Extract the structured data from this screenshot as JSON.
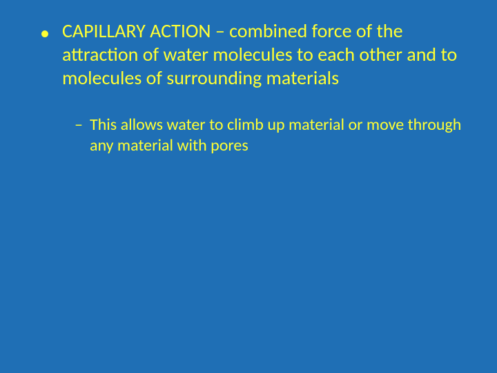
{
  "slide": {
    "background_color": "#1f6fb5",
    "text_color": "#ffff33",
    "font_family": "Calibri",
    "bullets": {
      "level1": {
        "marker": "•",
        "text": "CAPILLARY ACTION – combined force of the attraction of water molecules to each other and to molecules of surrounding materials",
        "fontsize": 28
      },
      "level2": {
        "marker": "–",
        "text": "This allows water to climb up material or move through any material with pores",
        "fontsize": 24
      }
    }
  }
}
